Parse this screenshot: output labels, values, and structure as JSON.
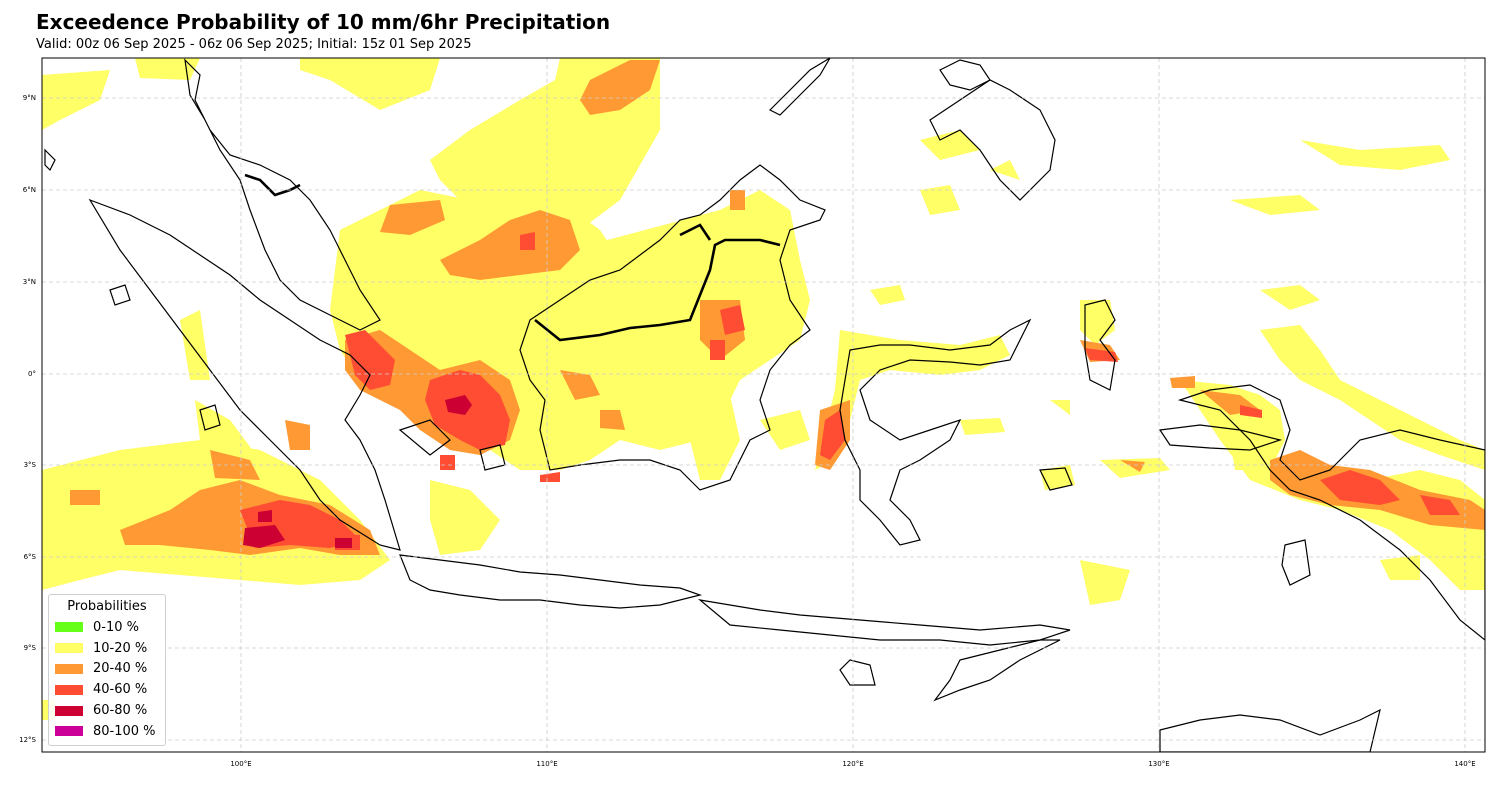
{
  "title": "Exceedence Probability of 10 mm/6hr Precipitation",
  "subtitle": "Valid: 00z 06 Sep 2025 - 06z 06 Sep 2025; Initial: 15z 01 Sep 2025",
  "lat_labels": [
    "9°N",
    "6°N",
    "3°N",
    "0°",
    "3°S",
    "6°S",
    "9°S",
    "12°S"
  ],
  "lon_labels": [
    "100°E",
    "110°E",
    "120°E",
    "130°E",
    "140°E"
  ],
  "map_extent": {
    "lon": [
      93.5,
      140.7
    ],
    "lat": [
      -12.6,
      10.2
    ]
  },
  "legend": {
    "title": "Probabilities",
    "items": [
      {
        "label": "0-10 %",
        "color": "#66ff1a"
      },
      {
        "label": "10-20 %",
        "color": "#ffff66"
      },
      {
        "label": "20-40 %",
        "color": "#ff9933"
      },
      {
        "label": "40-60 %",
        "color": "#ff4d33"
      },
      {
        "label": "60-80 %",
        "color": "#cc0033"
      },
      {
        "label": "80-100 %",
        "color": "#cc0099"
      }
    ]
  },
  "colors": {
    "p10_20": "#ffff66",
    "p20_40": "#ff9933",
    "p40_60": "#ff4d33",
    "p60_80": "#cc0033",
    "coast": "#000000",
    "grid": "#cccccc"
  }
}
